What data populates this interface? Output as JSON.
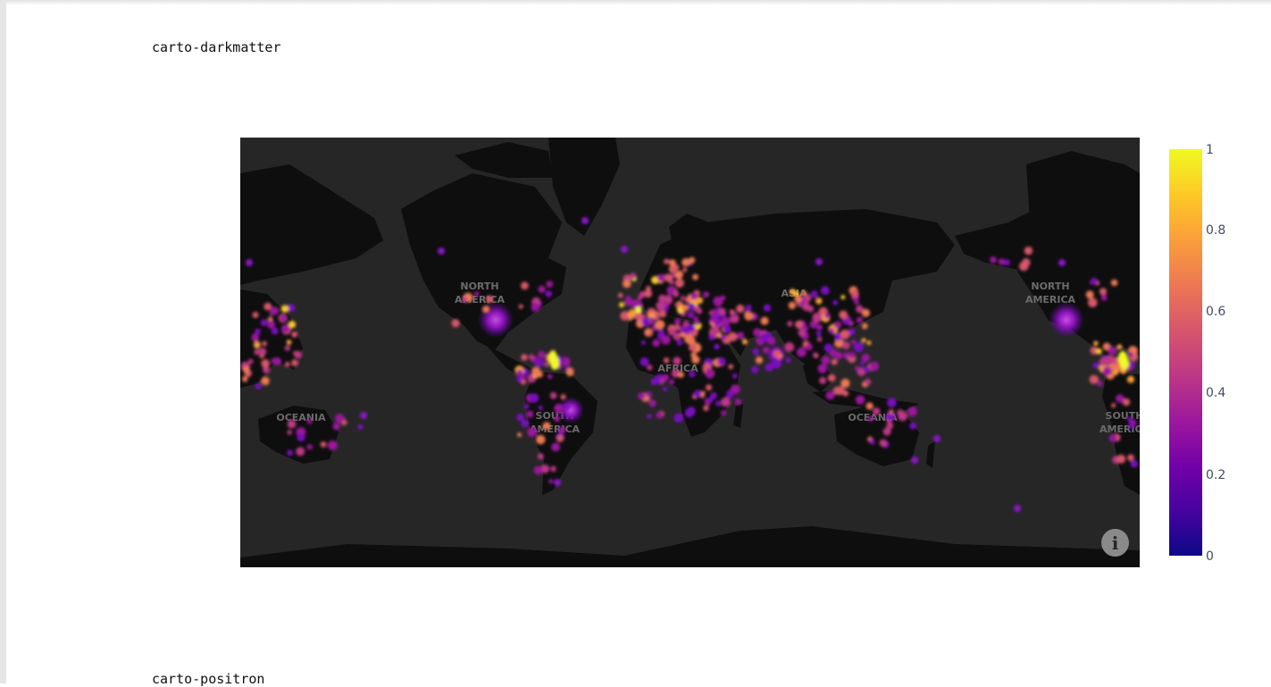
{
  "labels": {
    "first": "carto-darkmatter",
    "second": "carto-positron"
  },
  "map": {
    "style": "carto-darkmatter",
    "colors": {
      "background": "#262626",
      "land": "#0e0e0e",
      "place_label": "#6b6b6b"
    },
    "place_labels": [
      "NORTH",
      "AMERICA",
      "SOUTH",
      "AMERICA",
      "AFRICA",
      "ASIA",
      "OCEANIA",
      "NORTH",
      "AMERICA",
      "SOUTH",
      "AMERICA",
      "OCEANIA"
    ],
    "info_icon": {
      "icon": "info-icon",
      "glyph": "i"
    }
  },
  "colorbar": {
    "ticks": [
      "1",
      "0.8",
      "0.6",
      "0.4",
      "0.2",
      "0"
    ],
    "range": [
      0,
      1
    ],
    "colorscale": [
      "#0d0887",
      "#46039f",
      "#7201a8",
      "#9c179e",
      "#bd3786",
      "#d8576b",
      "#ed7953",
      "#fb9f3a",
      "#fdca26",
      "#f0f921"
    ]
  }
}
